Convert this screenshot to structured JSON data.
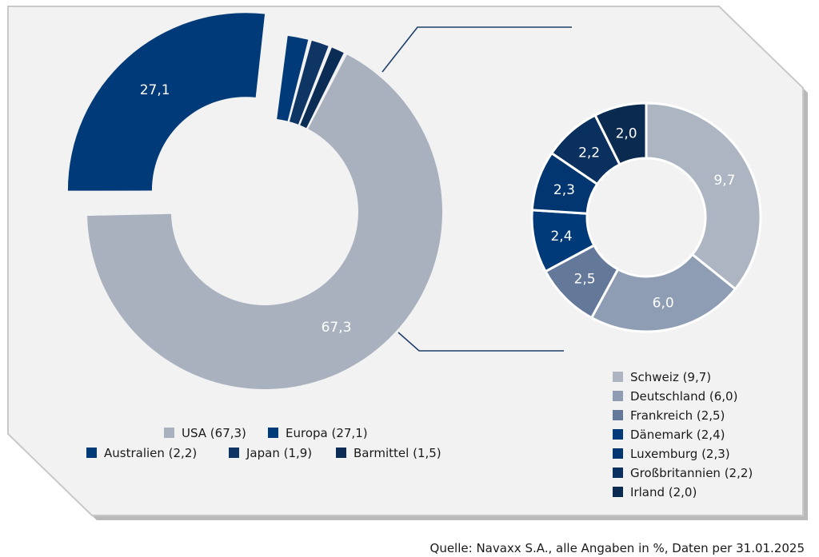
{
  "colors": {
    "panel_fill": "#f2f2f2",
    "panel_border": "#c8c8c8",
    "panel_shadow": "#b9b9b9",
    "connector": "#1f3f6b"
  },
  "chart_data": [
    {
      "type": "pie",
      "variant": "donut",
      "unit": "%",
      "categories": [
        "USA",
        "Europa",
        "Australien",
        "Japan",
        "Barmittel"
      ],
      "values": [
        67.3,
        27.1,
        2.2,
        1.9,
        1.5
      ],
      "value_labels": [
        "67,3",
        "27,1",
        "",
        "",
        ""
      ],
      "colors": [
        "#a9b1bf",
        "#003a78",
        "#003a78",
        "#0f3565",
        "#0b2d55"
      ],
      "exploded_category": "Europa",
      "legend": [
        "USA (67,3)",
        "Europa (27,1)",
        "Australien (2,2)",
        "Japan (1,9)",
        "Barmittel (1,5)"
      ],
      "legend_position": "bottom"
    },
    {
      "type": "pie",
      "variant": "donut",
      "unit": "%",
      "detail_of": "Europa",
      "categories": [
        "Schweiz",
        "Deutschland",
        "Frankreich",
        "Dänemark",
        "Luxemburg",
        "Großbritannien",
        "Irland"
      ],
      "values": [
        9.7,
        6.0,
        2.5,
        2.4,
        2.3,
        2.2,
        2.0
      ],
      "value_labels": [
        "9,7",
        "6,0",
        "2,5",
        "2,4",
        "2,3",
        "2,2",
        "2,0"
      ],
      "colors": [
        "#adb5c3",
        "#8e9db3",
        "#64789a",
        "#003a78",
        "#013670",
        "#09305e",
        "#0a2a4f"
      ],
      "legend": [
        "Schweiz (9,7)",
        "Deutschland (6,0)",
        "Frankreich (2,5)",
        "Dänemark (2,4)",
        "Luxemburg (2,3)",
        "Großbritannien (2,2)",
        "Irland (2,0)"
      ],
      "legend_position": "bottom-right"
    }
  ],
  "source": "Quelle: Navaxx S.A., alle Angaben in %, Daten per 31.01.2025"
}
